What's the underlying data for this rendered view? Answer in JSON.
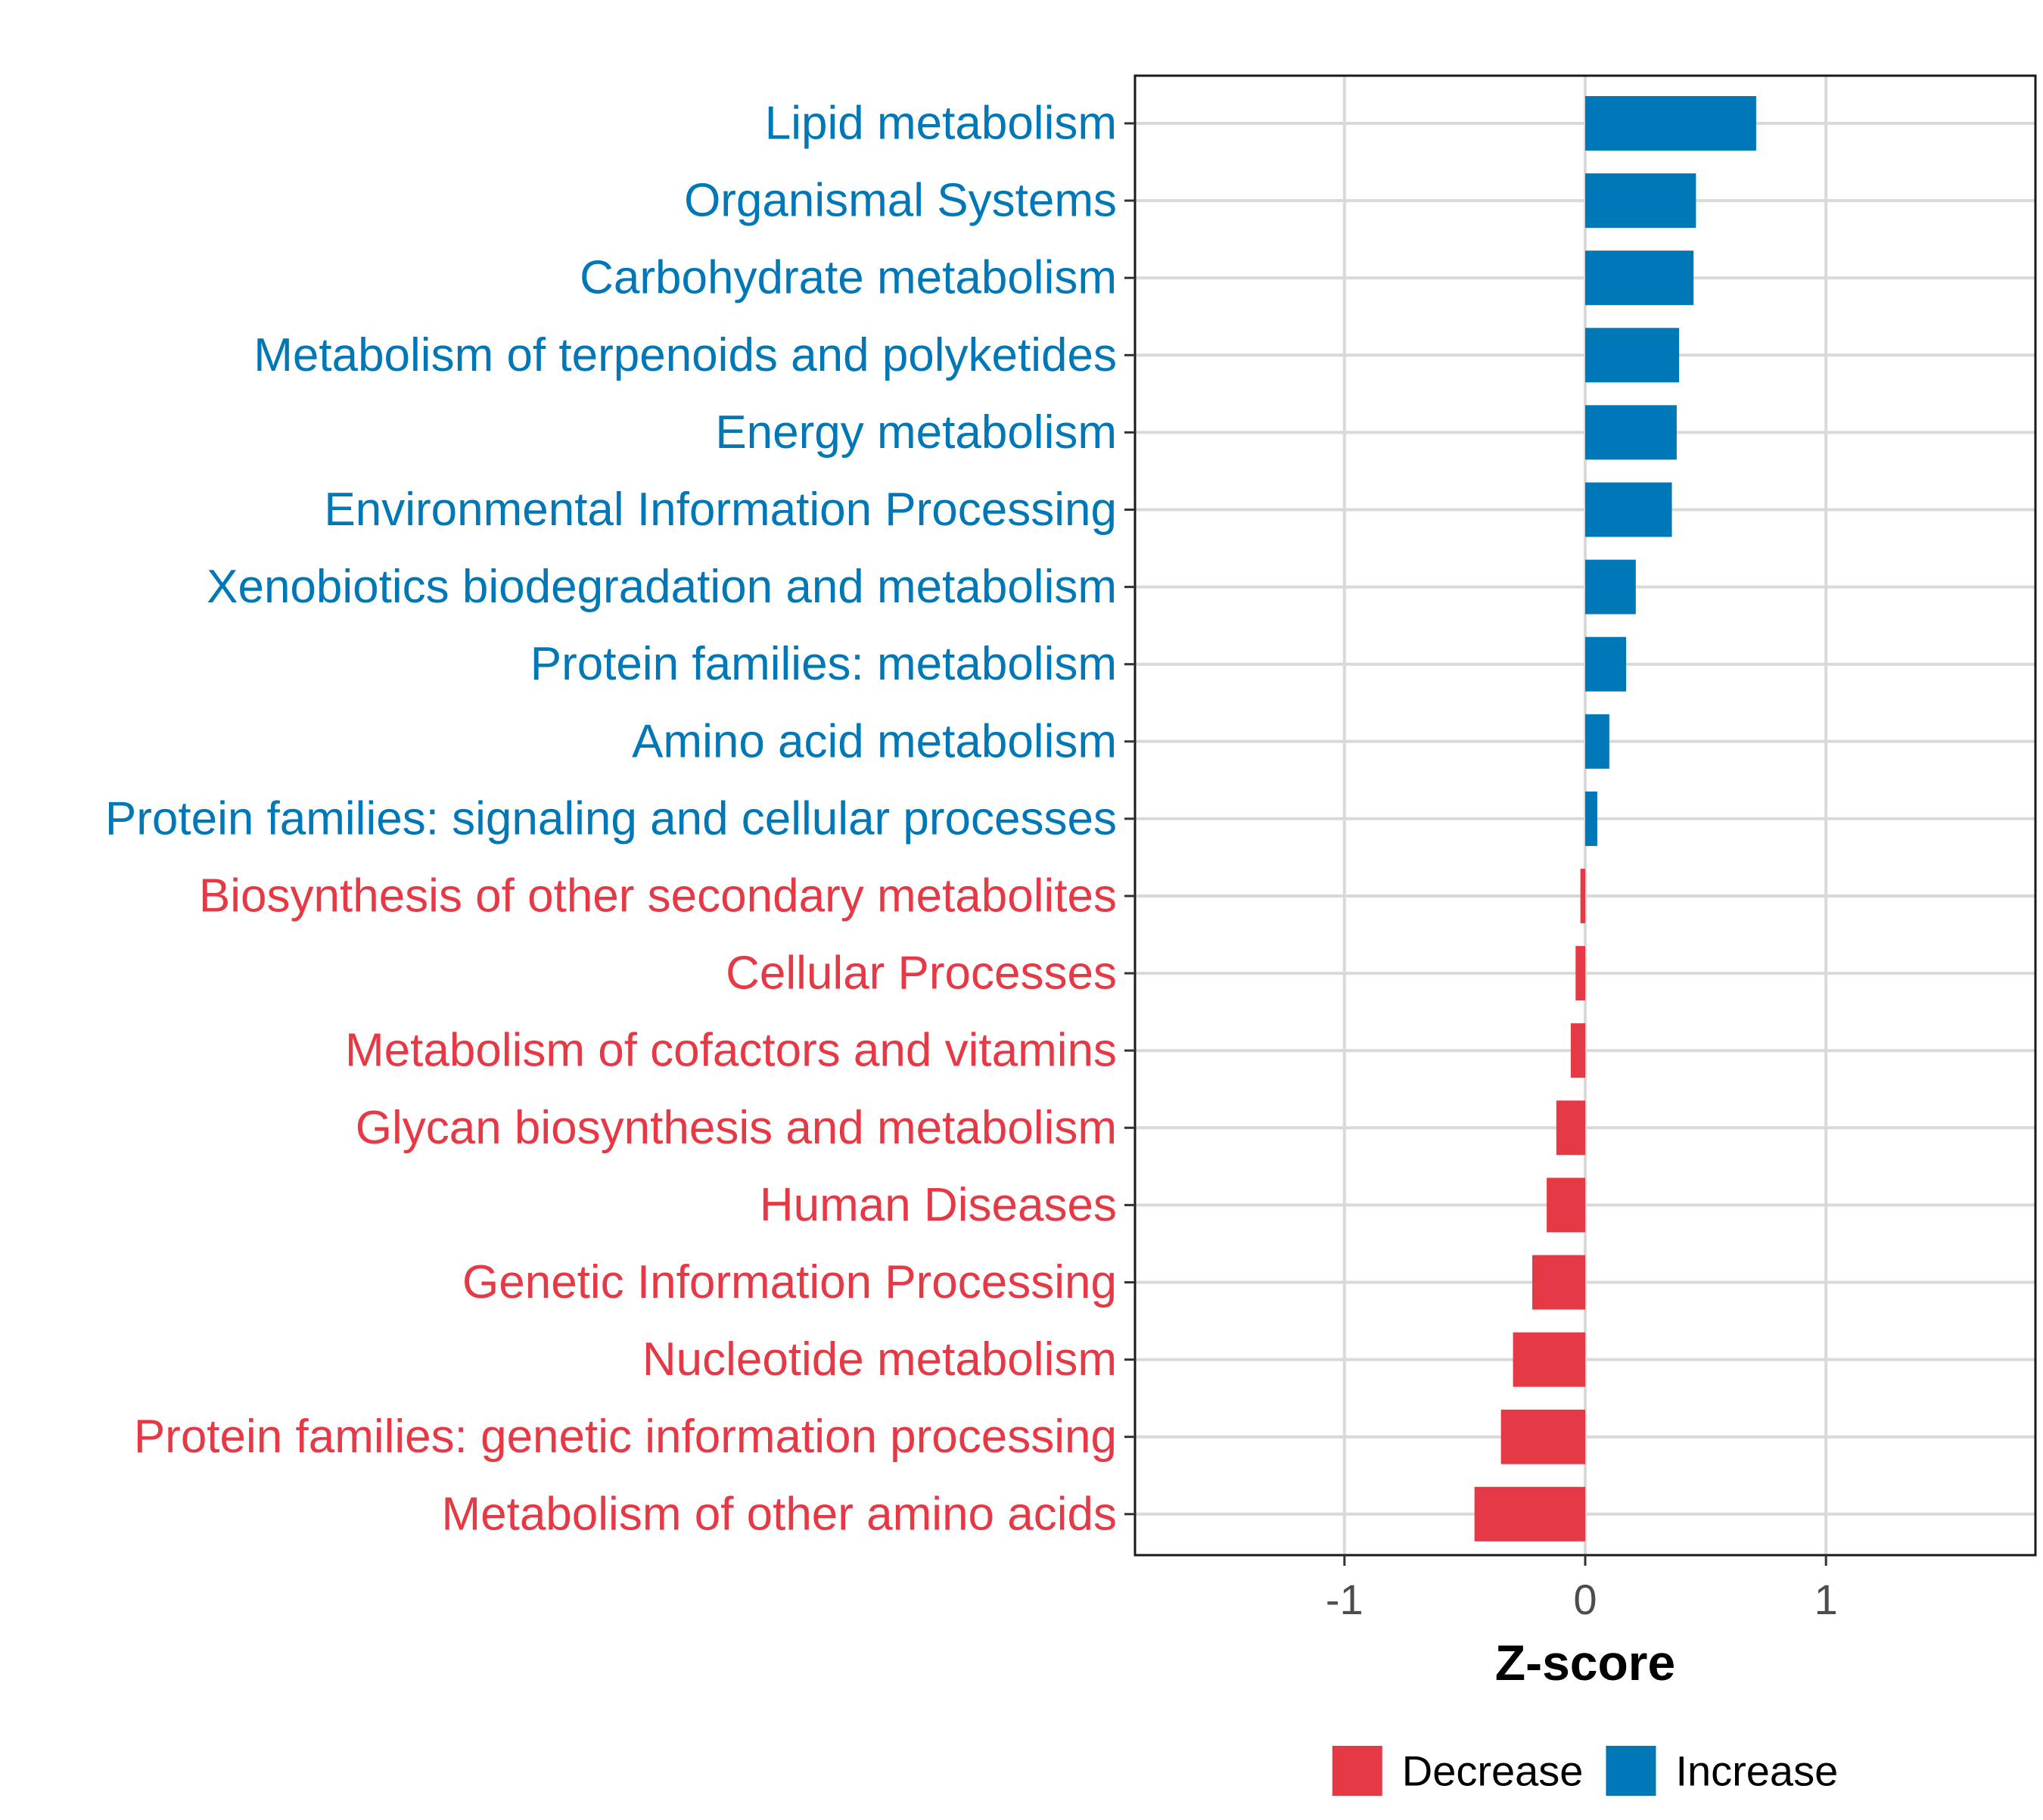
{
  "chart_data": {
    "type": "bar",
    "orientation": "horizontal",
    "xlabel": "Z-score",
    "ylabel": "",
    "xlim": [
      -1.87,
      1.87
    ],
    "xticks": [
      -1,
      0,
      1
    ],
    "xtick_labels": [
      "-1",
      "0",
      "1"
    ],
    "grid": true,
    "colors": {
      "Increase": "#0077b6",
      "Decrease": "#e63946"
    },
    "categories": [
      "Lipid metabolism",
      "Organismal Systems",
      "Carbohydrate metabolism",
      "Metabolism of terpenoids and polyketides",
      "Energy metabolism",
      "Environmental Information Processing",
      "Xenobiotics biodegradation and metabolism",
      "Protein families: metabolism",
      "Amino acid metabolism",
      "Protein families: signaling and cellular processes",
      "Biosynthesis of other secondary metabolites",
      "Cellular Processes",
      "Metabolism of cofactors and vitamins",
      "Glycan biosynthesis and metabolism",
      "Human Diseases",
      "Genetic Information Processing",
      "Nucleotide metabolism",
      "Protein families: genetic information processing",
      "Metabolism of other amino acids"
    ],
    "values": [
      0.71,
      0.46,
      0.45,
      0.39,
      0.38,
      0.36,
      0.21,
      0.17,
      0.1,
      0.05,
      -0.02,
      -0.04,
      -0.06,
      -0.12,
      -0.16,
      -0.22,
      -0.3,
      -0.35,
      -0.46
    ],
    "groups": [
      "Increase",
      "Increase",
      "Increase",
      "Increase",
      "Increase",
      "Increase",
      "Increase",
      "Increase",
      "Increase",
      "Increase",
      "Decrease",
      "Decrease",
      "Decrease",
      "Decrease",
      "Decrease",
      "Decrease",
      "Decrease",
      "Decrease",
      "Decrease"
    ],
    "legend": {
      "placement": "bottom",
      "entries": [
        {
          "label": "Decrease",
          "color": "#e63946"
        },
        {
          "label": "Increase",
          "color": "#0077b6"
        }
      ]
    }
  }
}
